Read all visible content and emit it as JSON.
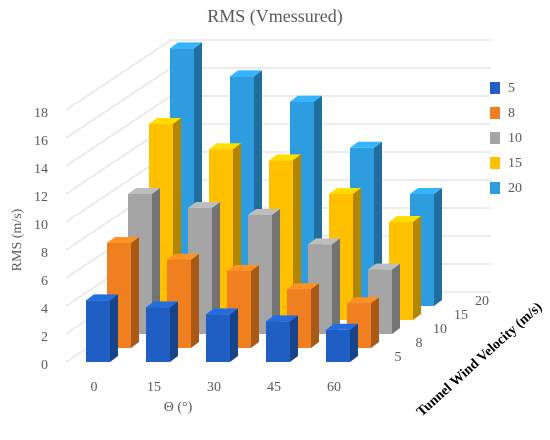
{
  "chart_data": {
    "type": "bar3d",
    "title": "RMS (Vmessured)",
    "x_label": "Θ (°)",
    "y_label": "RMS (m/s)",
    "z_label": "Tunnel Wind Velocity (m/s)",
    "categories": [
      "0",
      "15",
      "30",
      "45",
      "60"
    ],
    "series": [
      {
        "name": "5",
        "color": "#1f5fc4",
        "values": [
          4.4,
          3.9,
          3.4,
          2.9,
          2.3
        ]
      },
      {
        "name": "8",
        "color": "#f07f1f",
        "values": [
          7.5,
          6.3,
          5.5,
          4.2,
          3.2
        ]
      },
      {
        "name": "10",
        "color": "#a5a5a5",
        "values": [
          10,
          9,
          8.5,
          6.4,
          4.6
        ]
      },
      {
        "name": "15",
        "color": "#ffc000",
        "values": [
          14,
          12.2,
          11.4,
          9,
          7
        ]
      },
      {
        "name": "20",
        "color": "#2e9de0",
        "values": [
          18.4,
          16.4,
          14.6,
          11.3,
          8
        ]
      }
    ],
    "ylim": [
      0,
      18
    ],
    "yticks": [
      0,
      2,
      4,
      6,
      8,
      10,
      12,
      14,
      16,
      18
    ],
    "grid": true,
    "legend": "right"
  }
}
